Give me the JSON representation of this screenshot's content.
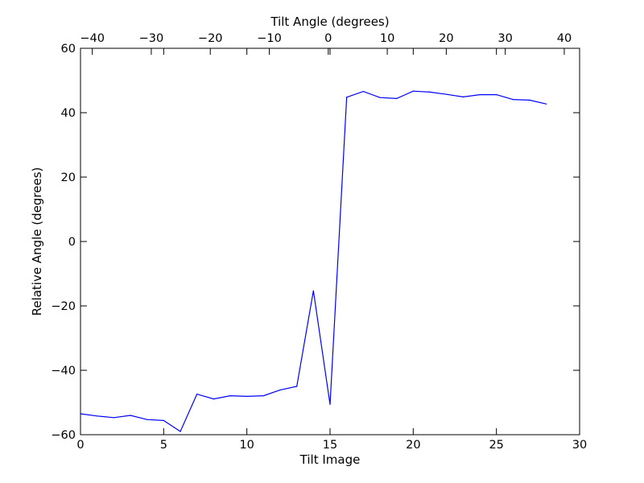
{
  "chart_data": {
    "type": "line",
    "xlabel": "Tilt Image",
    "ylabel": "Relative Angle (degrees)",
    "top_xlabel": "Tilt Angle (degrees)",
    "xlim": [
      0,
      30
    ],
    "ylim": [
      -60,
      60
    ],
    "top_xlim": [
      -42,
      42.6
    ],
    "x_ticks": [
      0,
      5,
      10,
      15,
      20,
      25,
      30
    ],
    "x_tick_labels": [
      "0",
      "5",
      "10",
      "15",
      "20",
      "25",
      "30"
    ],
    "y_ticks": [
      -60,
      -40,
      -20,
      0,
      20,
      40,
      60
    ],
    "y_tick_labels": [
      "−60",
      "−40",
      "−20",
      "0",
      "20",
      "40",
      "60"
    ],
    "top_ticks": [
      -40,
      -30,
      -20,
      -10,
      0,
      10,
      20,
      30,
      40
    ],
    "top_tick_labels": [
      "−40",
      "−30",
      "−20",
      "−10",
      "0",
      "10",
      "20",
      "30",
      "40"
    ],
    "grid": false,
    "line_color": "#0000ff",
    "series": [
      {
        "x": [
          0,
          1,
          2,
          3,
          4,
          5,
          6,
          7,
          8,
          9,
          10,
          11,
          12,
          13,
          14,
          15,
          16,
          17,
          18,
          19,
          20,
          21,
          22,
          23,
          24,
          25,
          26,
          27,
          28
        ],
        "values": [
          -53.5,
          -54.2,
          -54.7,
          -54.0,
          -55.3,
          -55.6,
          -59.0,
          -47.4,
          -48.9,
          -47.9,
          -48.1,
          -47.9,
          -46.1,
          -45.0,
          -15.3,
          -50.6,
          44.8,
          46.6,
          44.7,
          44.4,
          46.7,
          46.4,
          45.7,
          44.9,
          45.6,
          45.6,
          44.1,
          43.9,
          42.7
        ]
      }
    ]
  }
}
